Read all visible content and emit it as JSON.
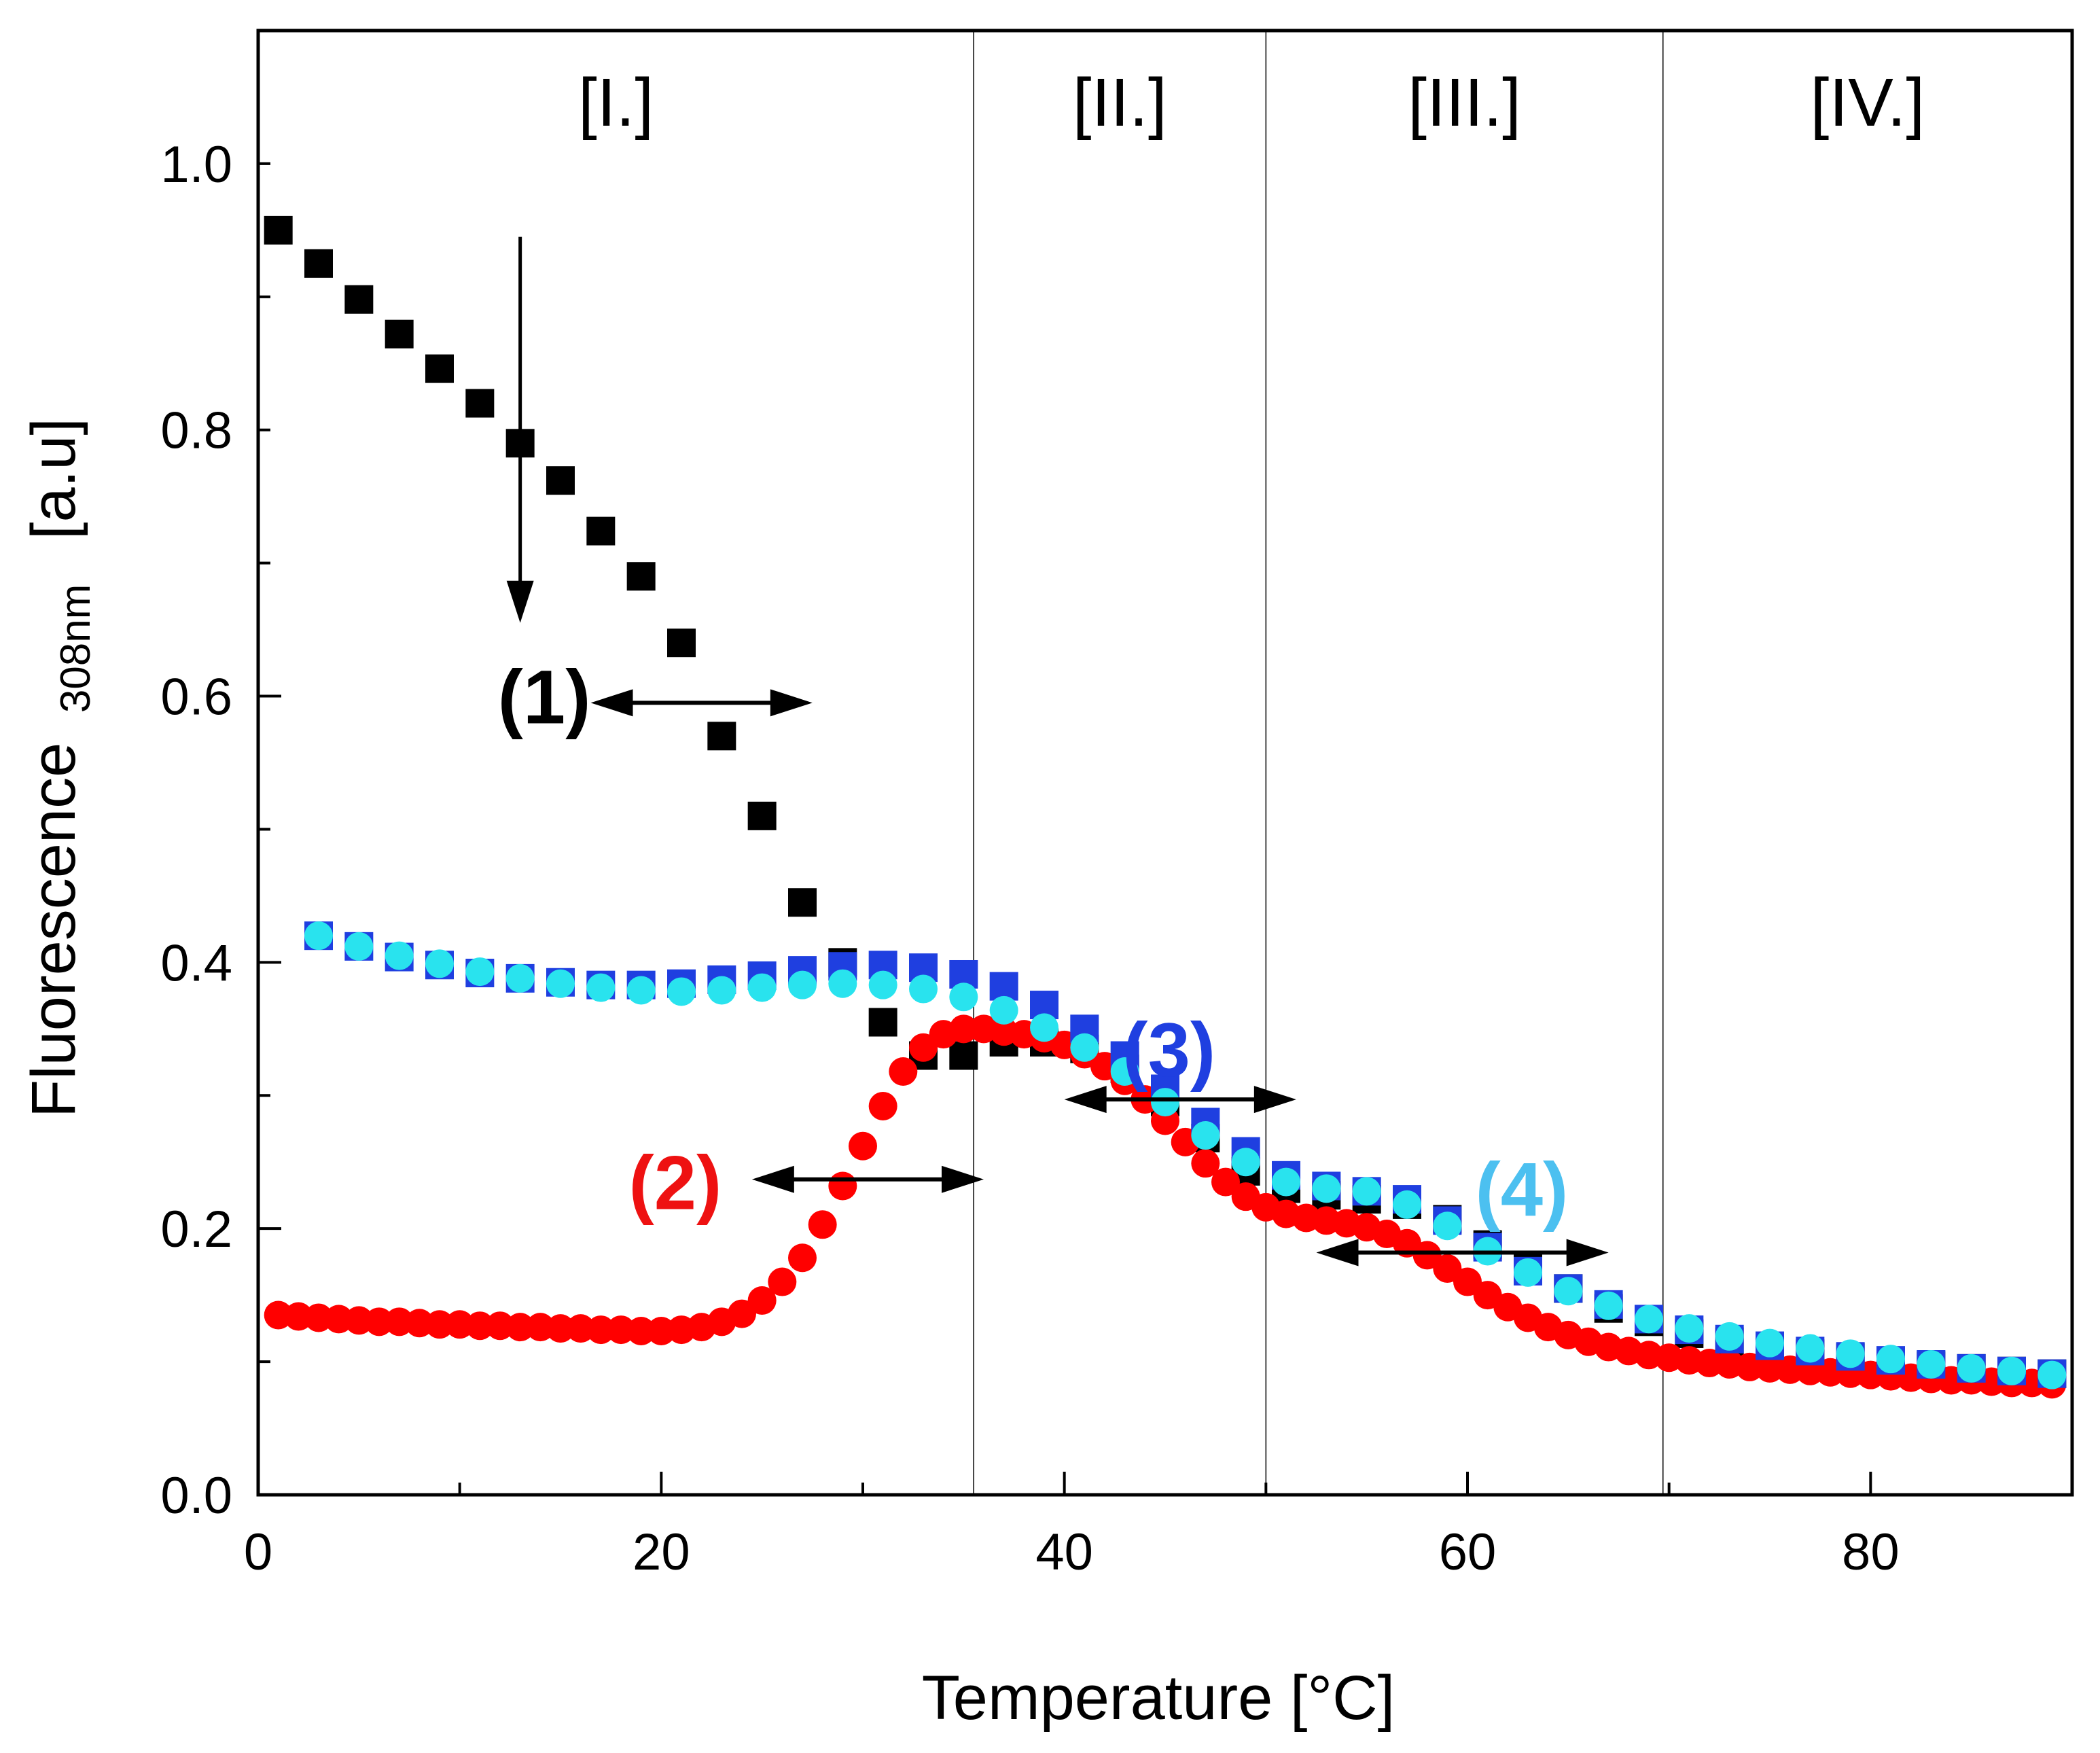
{
  "chart_data": {
    "type": "scatter",
    "title": "",
    "xlabel": "Temperature  [°C]",
    "ylabel": "Fluorescence",
    "ylabel_subscript": "308nm",
    "ylabel_units": "[a.u]",
    "xlim": [
      0,
      90
    ],
    "ylim": [
      0,
      1.1
    ],
    "xticks": [
      0,
      20,
      40,
      60,
      80
    ],
    "yticks": [
      0.0,
      0.2,
      0.4,
      0.6,
      0.8,
      1.0
    ],
    "xtick_labels": [
      "0",
      "20",
      "40",
      "60",
      "80"
    ],
    "ytick_labels": [
      "0.0",
      "0.2",
      "0.4",
      "0.6",
      "0.8",
      "1.0"
    ],
    "grid": false,
    "regions": [
      {
        "label": "[I.]",
        "x_start": 0,
        "x_end": 35.5
      },
      {
        "label": "[II.]",
        "x_start": 35.5,
        "x_end": 50
      },
      {
        "label": "[III.]",
        "x_start": 50,
        "x_end": 69.7
      },
      {
        "label": "[IV.]",
        "x_start": 69.7,
        "x_end": 90
      }
    ],
    "series": [
      {
        "name": "(1)",
        "color": "#000000",
        "marker": "square",
        "x": [
          1,
          3,
          5,
          7,
          9,
          11,
          13,
          15,
          17,
          19,
          21,
          23,
          25,
          27,
          29,
          31,
          33,
          35,
          37,
          39,
          41,
          43,
          45,
          47,
          49,
          51,
          53,
          55,
          57,
          59,
          61,
          63,
          65,
          67,
          69,
          71,
          73,
          75,
          77,
          79,
          81,
          83,
          85,
          87,
          89
        ],
        "y": [
          0.95,
          0.925,
          0.898,
          0.872,
          0.846,
          0.82,
          0.79,
          0.762,
          0.724,
          0.69,
          0.64,
          0.57,
          0.51,
          0.445,
          0.4,
          0.355,
          0.33,
          0.33,
          0.34,
          0.34,
          0.335,
          0.32,
          0.295,
          0.268,
          0.243,
          0.23,
          0.225,
          0.222,
          0.218,
          0.207,
          0.188,
          0.17,
          0.155,
          0.14,
          0.13,
          0.121,
          0.115,
          0.11,
          0.106,
          0.103,
          0.1,
          0.097,
          0.095,
          0.093,
          0.091
        ]
      },
      {
        "name": "(2)",
        "color": "#ff0000",
        "marker": "circle",
        "x": [
          1,
          2,
          3,
          4,
          5,
          6,
          7,
          8,
          9,
          10,
          11,
          12,
          13,
          14,
          15,
          16,
          17,
          18,
          19,
          20,
          21,
          22,
          23,
          24,
          25,
          26,
          27,
          28,
          29,
          30,
          31,
          32,
          33,
          34,
          35,
          36,
          37,
          38,
          39,
          40,
          41,
          42,
          43,
          44,
          45,
          46,
          47,
          48,
          49,
          50,
          51,
          52,
          53,
          54,
          55,
          56,
          57,
          58,
          59,
          60,
          61,
          62,
          63,
          64,
          65,
          66,
          67,
          68,
          69,
          70,
          71,
          72,
          73,
          74,
          75,
          76,
          77,
          78,
          79,
          80,
          81,
          82,
          83,
          84,
          85,
          86,
          87,
          88,
          89
        ],
        "y": [
          0.135,
          0.134,
          0.133,
          0.132,
          0.131,
          0.13,
          0.13,
          0.129,
          0.128,
          0.128,
          0.127,
          0.127,
          0.126,
          0.126,
          0.125,
          0.125,
          0.124,
          0.124,
          0.123,
          0.123,
          0.124,
          0.126,
          0.13,
          0.136,
          0.146,
          0.16,
          0.178,
          0.203,
          0.232,
          0.262,
          0.292,
          0.318,
          0.336,
          0.346,
          0.35,
          0.35,
          0.348,
          0.346,
          0.343,
          0.338,
          0.331,
          0.322,
          0.311,
          0.297,
          0.281,
          0.265,
          0.249,
          0.235,
          0.224,
          0.216,
          0.211,
          0.208,
          0.206,
          0.204,
          0.201,
          0.196,
          0.189,
          0.18,
          0.17,
          0.16,
          0.15,
          0.141,
          0.133,
          0.126,
          0.12,
          0.115,
          0.111,
          0.108,
          0.105,
          0.103,
          0.101,
          0.099,
          0.098,
          0.096,
          0.095,
          0.094,
          0.093,
          0.092,
          0.091,
          0.09,
          0.089,
          0.088,
          0.087,
          0.086,
          0.086,
          0.085,
          0.084,
          0.084,
          0.083
        ]
      },
      {
        "name": "(3)",
        "color": "#1f3fe0",
        "marker": "square",
        "x": [
          3,
          5,
          7,
          9,
          11,
          13,
          15,
          17,
          19,
          21,
          23,
          25,
          27,
          29,
          31,
          33,
          35,
          37,
          39,
          41,
          43,
          45,
          47,
          49,
          51,
          53,
          55,
          57,
          59,
          61,
          63,
          65,
          67,
          69,
          71,
          73,
          75,
          77,
          79,
          81,
          83,
          85,
          87,
          89
        ],
        "y": [
          0.42,
          0.412,
          0.404,
          0.398,
          0.392,
          0.388,
          0.385,
          0.383,
          0.383,
          0.384,
          0.387,
          0.39,
          0.394,
          0.397,
          0.398,
          0.396,
          0.391,
          0.382,
          0.368,
          0.35,
          0.33,
          0.305,
          0.28,
          0.258,
          0.24,
          0.232,
          0.228,
          0.222,
          0.206,
          0.186,
          0.168,
          0.155,
          0.143,
          0.132,
          0.124,
          0.117,
          0.112,
          0.108,
          0.104,
          0.101,
          0.098,
          0.095,
          0.093,
          0.091
        ]
      },
      {
        "name": "(4)",
        "color": "#29e3ee",
        "marker": "circle",
        "x": [
          3,
          5,
          7,
          9,
          11,
          13,
          15,
          17,
          19,
          21,
          23,
          25,
          27,
          29,
          31,
          33,
          35,
          37,
          39,
          41,
          43,
          45,
          47,
          49,
          51,
          53,
          55,
          57,
          59,
          61,
          63,
          65,
          67,
          69,
          71,
          73,
          75,
          77,
          79,
          81,
          83,
          85,
          87,
          89
        ],
        "y": [
          0.42,
          0.412,
          0.405,
          0.399,
          0.393,
          0.388,
          0.384,
          0.381,
          0.379,
          0.378,
          0.379,
          0.381,
          0.383,
          0.384,
          0.383,
          0.38,
          0.374,
          0.364,
          0.351,
          0.336,
          0.318,
          0.295,
          0.27,
          0.25,
          0.235,
          0.23,
          0.228,
          0.218,
          0.202,
          0.183,
          0.167,
          0.153,
          0.142,
          0.132,
          0.125,
          0.119,
          0.114,
          0.11,
          0.106,
          0.102,
          0.098,
          0.095,
          0.093,
          0.09
        ]
      }
    ],
    "annotations": [
      {
        "text": "(1)",
        "color": "#000000",
        "x": 16.5,
        "y": 0.6
      },
      {
        "text": "(2)",
        "color": "#ee1111",
        "x": 23,
        "y": 0.235
      },
      {
        "text": "(3)",
        "color": "#1f3fe0",
        "x": 47.5,
        "y": 0.335
      },
      {
        "text": "(4)",
        "color": "#4cc0f0",
        "x": 65,
        "y": 0.23
      }
    ],
    "arrows": [
      {
        "type": "down",
        "x": 13,
        "y_from": 0.945,
        "y_to": 0.655
      },
      {
        "type": "double",
        "y": 0.595,
        "x_from": 16.5,
        "x_to": 27.5
      },
      {
        "type": "double",
        "y": 0.237,
        "x_from": 24.5,
        "x_to": 36
      },
      {
        "type": "double",
        "y": 0.297,
        "x_from": 40,
        "x_to": 51.5
      },
      {
        "type": "double",
        "y": 0.182,
        "x_from": 52.5,
        "x_to": 67
      }
    ]
  }
}
